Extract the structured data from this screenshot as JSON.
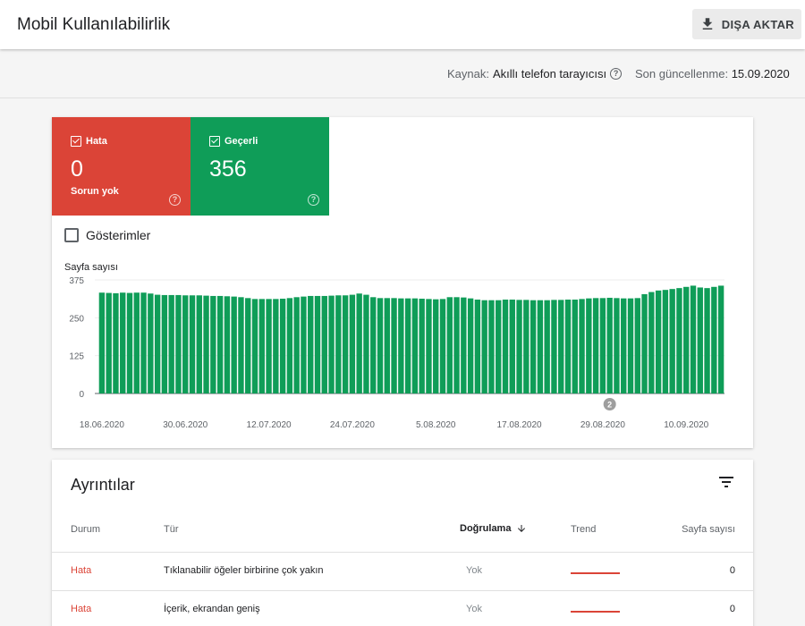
{
  "header": {
    "title": "Mobil Kullanılabilirlik",
    "export_label": "DIŞA AKTAR"
  },
  "info": {
    "source_label": "Kaynak:",
    "source_value": "Akıllı telefon tarayıcısı",
    "updated_label": "Son güncellenme:",
    "updated_value": "15.09.2020"
  },
  "tiles": {
    "error": {
      "label": "Hata",
      "value": "0",
      "sub": "Sorun yok",
      "color": "#db4437"
    },
    "valid": {
      "label": "Geçerli",
      "value": "356",
      "color": "#0f9d58"
    }
  },
  "impressions_label": "Gösterimler",
  "chart_data": {
    "type": "bar",
    "ylabel": "Sayfa sayısı",
    "ylim": [
      0,
      375
    ],
    "yticks": [
      "0",
      "125",
      "250",
      "375"
    ],
    "xtick_labels": [
      "18.06.2020",
      "30.06.2020",
      "12.07.2020",
      "24.07.2020",
      "5.08.2020",
      "17.08.2020",
      "29.08.2020",
      "10.09.2020"
    ],
    "annotation": "2",
    "series": [
      {
        "name": "Geçerli",
        "color": "#0f9d58",
        "values": [
          333,
          332,
          331,
          333,
          332,
          333,
          333,
          330,
          326,
          325,
          325,
          325,
          324,
          324,
          324,
          323,
          322,
          322,
          321,
          320,
          318,
          315,
          312,
          312,
          312,
          312,
          313,
          315,
          318,
          320,
          322,
          322,
          322,
          323,
          324,
          324,
          326,
          330,
          326,
          318,
          315,
          315,
          315,
          314,
          314,
          314,
          313,
          312,
          311,
          312,
          318,
          318,
          317,
          314,
          310,
          308,
          308,
          308,
          310,
          310,
          309,
          309,
          308,
          308,
          308,
          309,
          309,
          310,
          310,
          312,
          314,
          315,
          315,
          316,
          315,
          314,
          314,
          315,
          328,
          335,
          340,
          342,
          345,
          348,
          352,
          356,
          350,
          348,
          352,
          356
        ]
      },
      {
        "name": "Hata",
        "color": "#db4437",
        "values": [
          0,
          0,
          0,
          0,
          0,
          0,
          0,
          0,
          0,
          0,
          0,
          0,
          0,
          0,
          0,
          0,
          0,
          0,
          0,
          0,
          0,
          0,
          0,
          0,
          0,
          0,
          0,
          0,
          0,
          0,
          0,
          0,
          0,
          0,
          0,
          0,
          0,
          0,
          0,
          0,
          0,
          0,
          0,
          0,
          0,
          0,
          0,
          0,
          0,
          0,
          0,
          0,
          0,
          0,
          0,
          0,
          0,
          0,
          0,
          0,
          0,
          0,
          0,
          0,
          0,
          0,
          0,
          0,
          0,
          0,
          0,
          0,
          0,
          0,
          0,
          0,
          0,
          0,
          0,
          0,
          0,
          0,
          0,
          0,
          0,
          0,
          0,
          0,
          0,
          0
        ]
      }
    ]
  },
  "details": {
    "title": "Ayrıntılar",
    "columns": {
      "status": "Durum",
      "type": "Tür",
      "verification": "Doğrulama",
      "trend": "Trend",
      "pages": "Sayfa sayısı"
    },
    "rows": [
      {
        "status": "Hata",
        "type": "Tıklanabilir öğeler birbirine çok yakın",
        "verification": "Yok",
        "pages": "0"
      },
      {
        "status": "Hata",
        "type": "İçerik, ekrandan geniş",
        "verification": "Yok",
        "pages": "0"
      }
    ]
  }
}
